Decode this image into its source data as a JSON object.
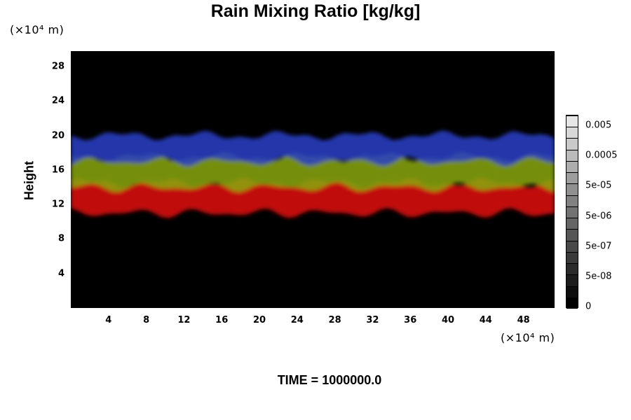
{
  "chart_data": {
    "type": "heatmap",
    "title": "Rain Mixing Ratio [kg/kg]",
    "xlabel": "",
    "ylabel": "Height",
    "x_unit_label": "(×10⁴ m)",
    "y_unit_label": "(×10⁴ m)",
    "x_ticks": [
      "4",
      "8",
      "12",
      "16",
      "20",
      "24",
      "28",
      "32",
      "36",
      "40",
      "44",
      "48"
    ],
    "y_ticks": [
      "4",
      "8",
      "12",
      "16",
      "20",
      "24",
      "28"
    ],
    "xlim": [
      0,
      51.3
    ],
    "ylim": [
      0,
      29.8
    ],
    "background_color": "#000000",
    "layers": [
      {
        "color": "#e3130f",
        "y_range": [
          11,
          14.5
        ]
      },
      {
        "color": "#8aa80f",
        "y_range": [
          14,
          17.5
        ]
      },
      {
        "color": "#2a3fc8",
        "y_range": [
          17,
          20
        ]
      }
    ],
    "colorbar": {
      "labels": [
        "0.005",
        "0.0005",
        "5e-05",
        "5e-06",
        "5e-07",
        "5e-08",
        "0"
      ],
      "levels": 17
    },
    "footer": "TIME = 1000000.0"
  }
}
